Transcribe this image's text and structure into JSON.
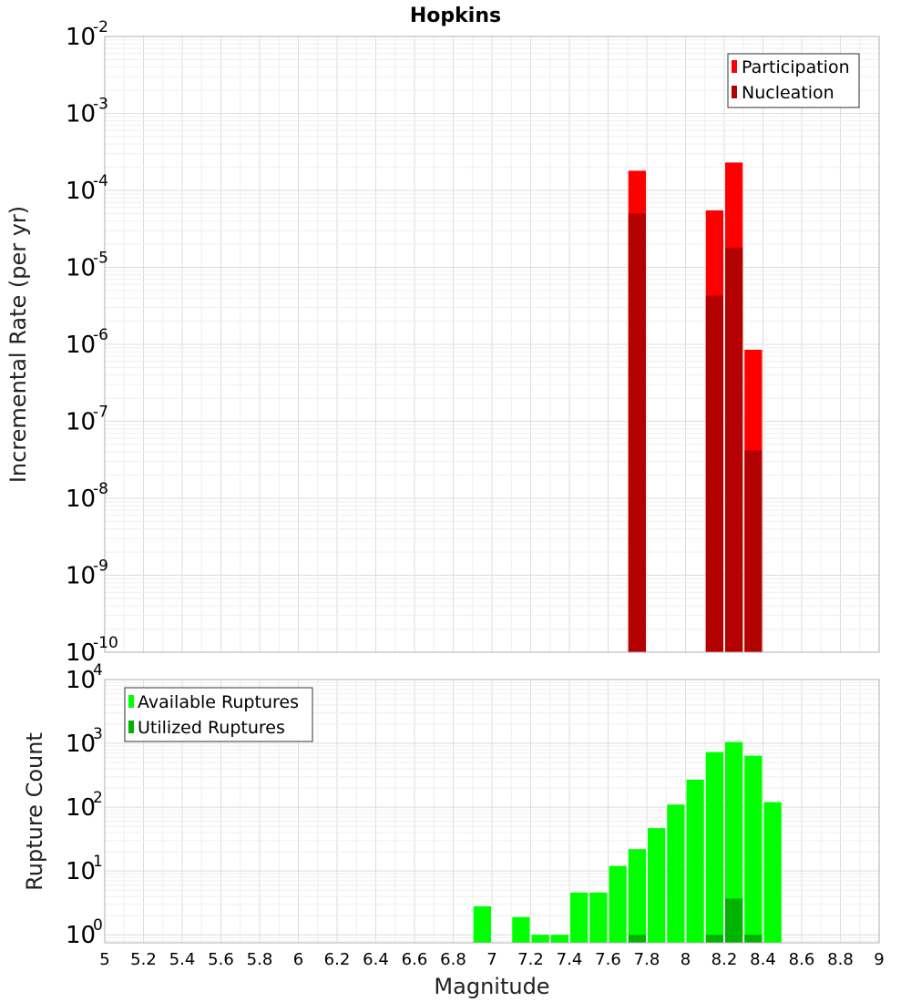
{
  "chart_data": [
    {
      "type": "bar",
      "title": "Hopkins",
      "xlabel": "",
      "ylabel": "Incremental Rate (per yr)",
      "yscale": "log",
      "ylim_exponents": [
        -10,
        -2
      ],
      "xlim": [
        5,
        9
      ],
      "grid": true,
      "legend_placement": "top-right",
      "y_tick_exponents": [
        "-2",
        "-3",
        "-4",
        "-5",
        "-6",
        "-7",
        "-8",
        "-9",
        "-10"
      ],
      "series": [
        {
          "name": "Participation",
          "color": "#ff0000",
          "points": [
            {
              "x": 7.75,
              "y": 0.00018
            },
            {
              "x": 8.15,
              "y": 5.5e-05
            },
            {
              "x": 8.25,
              "y": 0.00023
            },
            {
              "x": 8.35,
              "y": 8.5e-07
            }
          ]
        },
        {
          "name": "Nucleation",
          "color": "#b30000",
          "points": [
            {
              "x": 7.75,
              "y": 5e-05
            },
            {
              "x": 8.15,
              "y": 4.3e-06
            },
            {
              "x": 8.25,
              "y": 1.8e-05
            },
            {
              "x": 8.35,
              "y": 4.2e-08
            }
          ]
        }
      ]
    },
    {
      "type": "bar",
      "title": "",
      "xlabel": "Magnitude",
      "ylabel": "Rupture Count",
      "yscale": "log",
      "ylim": [
        0.75,
        10000
      ],
      "xlim": [
        5,
        9
      ],
      "grid": true,
      "legend_placement": "top-left",
      "y_tick_exponents": [
        "4",
        "3",
        "2",
        "1",
        "0"
      ],
      "x_tick_labels": [
        "5",
        "5.2",
        "5.4",
        "5.6",
        "5.8",
        "6",
        "6.2",
        "6.4",
        "6.6",
        "6.8",
        "7",
        "7.2",
        "7.4",
        "7.6",
        "7.8",
        "8",
        "8.2",
        "8.4",
        "8.6",
        "8.8",
        "9"
      ],
      "series": [
        {
          "name": "Available Ruptures",
          "color": "#00ff00",
          "points": [
            {
              "x": 6.95,
              "y": 2.8
            },
            {
              "x": 7.15,
              "y": 1.9
            },
            {
              "x": 7.25,
              "y": 1
            },
            {
              "x": 7.35,
              "y": 1
            },
            {
              "x": 7.45,
              "y": 4.6
            },
            {
              "x": 7.55,
              "y": 4.6
            },
            {
              "x": 7.65,
              "y": 12
            },
            {
              "x": 7.75,
              "y": 22
            },
            {
              "x": 7.85,
              "y": 47
            },
            {
              "x": 7.95,
              "y": 110
            },
            {
              "x": 8.05,
              "y": 270
            },
            {
              "x": 8.15,
              "y": 730
            },
            {
              "x": 8.25,
              "y": 1050
            },
            {
              "x": 8.35,
              "y": 640
            },
            {
              "x": 8.45,
              "y": 120
            }
          ]
        },
        {
          "name": "Utilized Ruptures",
          "color": "#00b300",
          "points": [
            {
              "x": 7.75,
              "y": 1
            },
            {
              "x": 8.15,
              "y": 1
            },
            {
              "x": 8.25,
              "y": 3.7
            },
            {
              "x": 8.35,
              "y": 1
            }
          ]
        }
      ]
    }
  ]
}
